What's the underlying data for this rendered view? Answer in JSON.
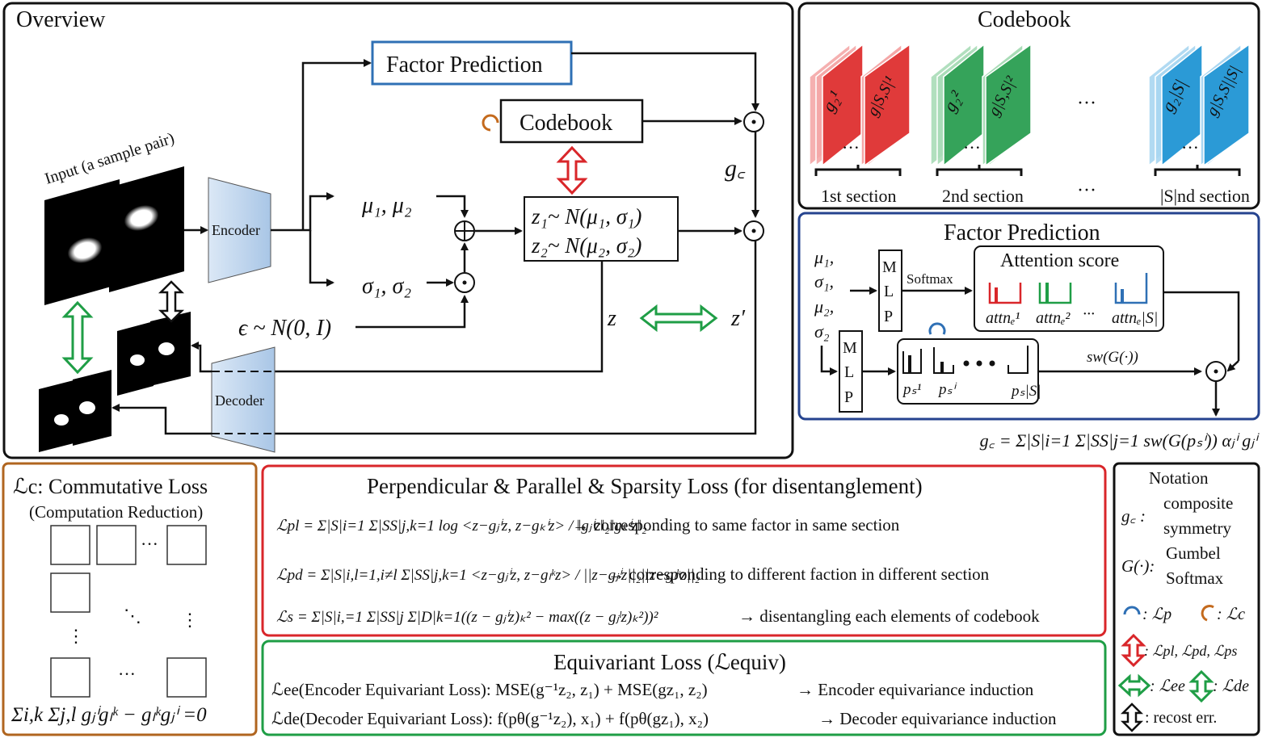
{
  "overview": {
    "title": "Overview",
    "input_label": "Input (a sample pair)",
    "encoder": "Encoder",
    "decoder": "Decoder",
    "factor_prediction": "Factor Prediction",
    "codebook": "Codebook",
    "mu": "μ₁, μ₂",
    "sigma": "σ₁, σ₂",
    "eps": "ϵ ~ N(0, I)",
    "z1": "z₁~ N(μ₁, σ₁)",
    "z2": "z₂~ N(μ₂, σ₂)",
    "gc": "g꜀",
    "z": "z",
    "zprime": "z′",
    "oplus": "⊕",
    "odot": "⊙"
  },
  "codebook_panel": {
    "title": "Codebook",
    "sections": [
      {
        "label": "1st section",
        "color": "#e03a3a",
        "light": "#f4a7a7",
        "g_a": "g₂¹",
        "g_b": "g|S,S|¹"
      },
      {
        "label": "2nd section",
        "color": "#35a35a",
        "light": "#a9dcb7",
        "g_a": "g₂²",
        "g_b": "g|S,S|²"
      },
      {
        "label": "|S|nd section",
        "color": "#2b9ad6",
        "light": "#a9d6f1",
        "g_a": "g₂|S|",
        "g_b": "g|S,S||S|"
      }
    ],
    "ellipsis": "···"
  },
  "factor_panel": {
    "title": "Factor Prediction",
    "inputs": [
      "μ₁,",
      "σ₁,",
      "μ₂,",
      "σ₂"
    ],
    "mlp": [
      "M",
      "L",
      "P"
    ],
    "softmax": "Softmax",
    "attention_title": "Attention score",
    "attn_labels": [
      "attnₑ¹",
      "attnₑ²",
      "attnₑ|S|"
    ],
    "p_labels": [
      "pₛ¹",
      "pₛⁱ",
      "pₛ|S|"
    ],
    "sw": "sw(G(·))",
    "formula": "g꜀ = Σ|S|i=1 Σ|SS|j=1 sw(G(pₛⁱ)) αⱼⁱ gⱼⁱ"
  },
  "commutative": {
    "title": "ℒc: Commutative Loss",
    "subtitle": "(Computation Reduction)",
    "formula": "Σi,k Σj,l gⱼⁱgₗᵏ − gₗᵏgⱼⁱ =0"
  },
  "perp": {
    "title": "Perpendicular & Parallel & Sparsity Loss (for disentanglement)",
    "rows": [
      {
        "lhs": "ℒpl = Σ|S|i=1 Σ|SS|j,k=1 log <z−gⱼⁱz, z−gₖⁱz> / ‖gⱼⁱz‖₂‖gₖⁱz‖₂",
        "desc": "→ corresponding to same factor in same section"
      },
      {
        "lhs": "ℒpd = Σ|S|i,l=1,i≠l Σ|SS|j,k=1 <z−gⱼⁱz, z−gₗᵏz> / ||z−gⱼⁱz||₂||z−gₗᵏz||₂",
        "desc": "→ corresponding to different faction in different section"
      },
      {
        "lhs": "ℒs = Σ|S|i,=1 Σ|SS|j Σ|D|k=1((z − gⱼⁱz)ₖ² − max((z − gⱼˡz)ₖ²))²",
        "desc": "→ disentangling each elements of codebook"
      }
    ]
  },
  "equiv": {
    "title": "Equivariant Loss (ℒequiv)",
    "rows": [
      {
        "lhs": "ℒee(Encoder Equivariant Loss): MSE(g⁻¹z₂, z₁) + MSE(gz₁, z₂)",
        "desc": "→ Encoder equivariance induction"
      },
      {
        "lhs": "ℒde(Decoder Equivariant Loss): f(pθ(g⁻¹z₂), x₁) + f(pθ(gz₁), x₂)",
        "desc": "→ Decoder equivariance induction"
      }
    ]
  },
  "notation": {
    "title": "Notation",
    "gc_sym": "g꜀ :",
    "gc_desc": [
      "composite",
      "symmetry"
    ],
    "g_sym": "G(·):",
    "g_desc": [
      "Gumbel",
      "Softmax"
    ],
    "lp": ": ℒp",
    "lc": ": ℒc",
    "red": ": ℒpl, ℒpd, ℒps",
    "green_ee": ": ℒee",
    "green_de": ": ℒde",
    "black": ": recost err."
  },
  "colors": {
    "red": "#d9262a",
    "green": "#1f9e46",
    "blue": "#2f70b5",
    "orange": "#c46a1d",
    "navy": "#25438f"
  }
}
